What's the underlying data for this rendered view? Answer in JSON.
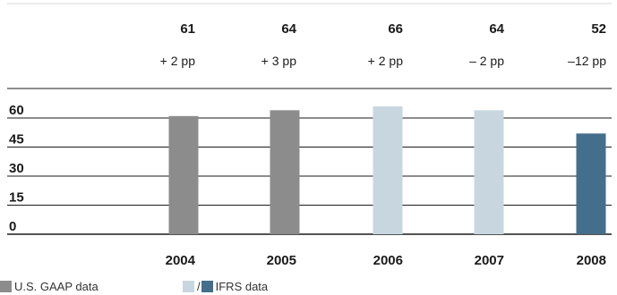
{
  "chart_data": {
    "type": "bar",
    "categories": [
      "2004",
      "2005",
      "2006",
      "2007",
      "2008"
    ],
    "values": [
      61,
      64,
      66,
      64,
      52
    ],
    "changes": [
      "+ 2 pp",
      "+ 3 pp",
      "+ 2 pp",
      "– 2 pp",
      "–12 pp"
    ],
    "value_labels": [
      "61",
      "64",
      "66",
      "64",
      "52"
    ],
    "series_group": [
      "us_gaap",
      "us_gaap",
      "ifrs",
      "ifrs",
      "ifrs_highlight"
    ],
    "y_ticks": [
      "60",
      "45",
      "30",
      "15",
      "0"
    ],
    "y_tick_values": [
      60,
      45,
      30,
      15,
      0
    ],
    "ylim": [
      0,
      60
    ],
    "grid": true,
    "colors": {
      "us_gaap": "#8c8c8c",
      "ifrs": "#c8d7df",
      "ifrs_highlight": "#436f8c",
      "grid": "#1a1a1a",
      "header_rule": "#d9d9d9"
    },
    "legend": {
      "us_gaap_label": "U.S. GAAP data",
      "ifrs_label": "IFRS data",
      "slash": "/"
    }
  }
}
